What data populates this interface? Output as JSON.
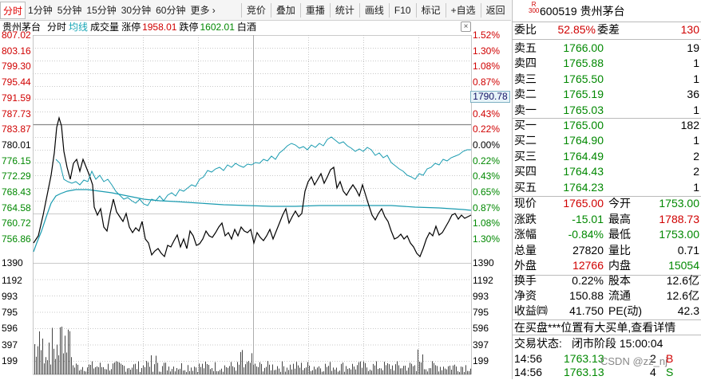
{
  "toolbar": {
    "tabs": [
      "分时",
      "1分钟",
      "5分钟",
      "15分钟",
      "30分钟",
      "60分钟",
      "更多 ›"
    ],
    "buttons": [
      "竞价",
      "叠加",
      "重播",
      "统计",
      "画线",
      "F10",
      "标记",
      "+自选",
      "返回"
    ]
  },
  "chart_header": {
    "stock_name": "贵州茅台",
    "mode": "分时",
    "avg_line": "均线",
    "volume": "成交量",
    "limit_up_label": "涨停",
    "limit_up_value": "1958.01",
    "limit_down_label": "跌停",
    "limit_down_value": "1602.01",
    "sector": "白酒",
    "close": "×"
  },
  "price_axis": {
    "left": [
      "807.02",
      "803.16",
      "799.30",
      "795.44",
      "791.59",
      "787.73",
      "783.87",
      "780.01",
      "776.15",
      "772.29",
      "768.43",
      "764.58",
      "760.72",
      "756.86"
    ],
    "right": [
      "1.52%",
      "1.30%",
      "1.08%",
      "0.87%",
      "0.65%",
      "0.43%",
      "0.22%",
      "0.00%",
      "0.22%",
      "0.43%",
      "0.65%",
      "0.87%",
      "1.08%",
      "1.30%"
    ],
    "current_tag": "1790.78"
  },
  "volume_axis": {
    "labels": [
      "1390",
      "1192",
      "993",
      "795",
      "596",
      "397",
      "199"
    ]
  },
  "panel": {
    "r_badge": "R",
    "r_num": "300",
    "title": "600519 贵州茅台",
    "weibi_label": "委比",
    "weibi_value": "52.85%",
    "weicha_label": "委差",
    "weicha_value": "130",
    "sell": [
      {
        "label": "卖五",
        "price": "1766.00",
        "vol": "19"
      },
      {
        "label": "卖四",
        "price": "1765.88",
        "vol": "1"
      },
      {
        "label": "卖三",
        "price": "1765.50",
        "vol": "1"
      },
      {
        "label": "卖二",
        "price": "1765.19",
        "vol": "36"
      },
      {
        "label": "卖一",
        "price": "1765.03",
        "vol": "1"
      }
    ],
    "buy": [
      {
        "label": "买一",
        "price": "1765.00",
        "vol": "182"
      },
      {
        "label": "买二",
        "price": "1764.90",
        "vol": "1"
      },
      {
        "label": "买三",
        "price": "1764.49",
        "vol": "2"
      },
      {
        "label": "买四",
        "price": "1764.43",
        "vol": "2"
      },
      {
        "label": "买五",
        "price": "1764.23",
        "vol": "1"
      }
    ],
    "stats": [
      {
        "l1": "现价",
        "v1": "1765.00",
        "c1": "red",
        "l2": "今开",
        "v2": "1753.00",
        "c2": "green"
      },
      {
        "l1": "涨跌",
        "v1": "-15.01",
        "c1": "green",
        "l2": "最高",
        "v2": "1788.73",
        "c2": "red"
      },
      {
        "l1": "涨幅",
        "v1": "-0.84%",
        "c1": "green",
        "l2": "最低",
        "v2": "1753.00",
        "c2": "green"
      },
      {
        "l1": "总量",
        "v1": "27820",
        "c1": "black",
        "l2": "量比",
        "v2": "0.71",
        "c2": "black"
      },
      {
        "l1": "外盘",
        "v1": "12766",
        "c1": "red",
        "l2": "内盘",
        "v2": "15054",
        "c2": "green"
      }
    ],
    "stats2": [
      {
        "l1": "换手",
        "v1": "0.22%",
        "l2": "股本",
        "v2": "12.6亿"
      },
      {
        "l1": "净资",
        "v1": "150.88",
        "l2": "流通",
        "v2": "12.6亿"
      },
      {
        "l1": "收益㈣",
        "v1": "41.750",
        "l2": "PE(动)",
        "v2": "42.3"
      }
    ],
    "notice": "在买盘***位置有大买单,查看详情",
    "status_label": "交易状态:",
    "status_value": "闭市阶段 15:00:04",
    "ticks": [
      {
        "time": "14:56",
        "price": "1763.13",
        "vol": "2",
        "side": "B"
      },
      {
        "time": "14:56",
        "price": "1763.13",
        "vol": "4",
        "side": "S"
      }
    ],
    "watermark": "CSDN @zz_nj"
  },
  "colors": {
    "price_line": "#000000",
    "avg_line": "#1a9bb0",
    "up": "#d00000",
    "down": "#008800",
    "grid": "#b8b8b8"
  }
}
